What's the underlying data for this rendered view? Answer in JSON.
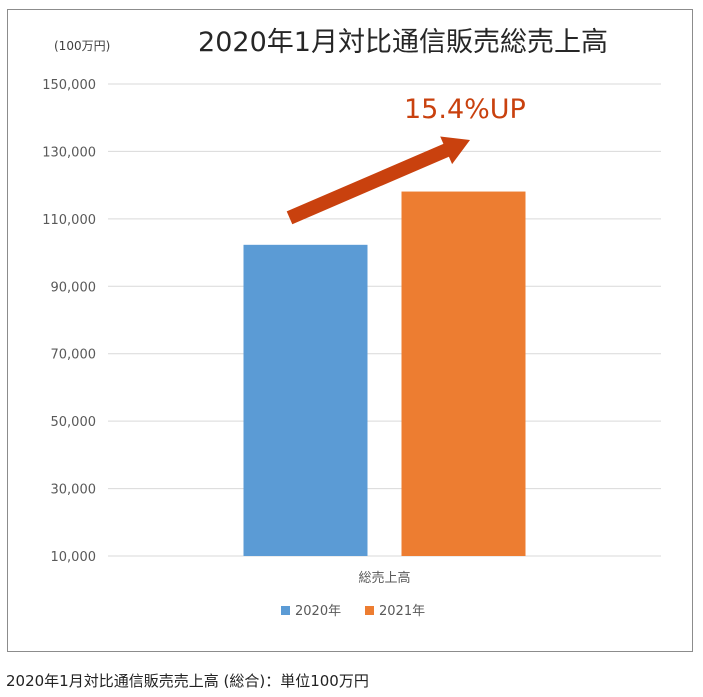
{
  "caption": "2020年1月対比通信販売売上高 (総合)：単位100万円",
  "chart_data": {
    "type": "bar",
    "title": "2020年1月対比通信販売総売上高",
    "unit_label": "(100万円)",
    "categories": [
      "総売上高"
    ],
    "series": [
      {
        "name": "2020年",
        "values": [
          102300
        ],
        "color": "#5b9bd5"
      },
      {
        "name": "2021年",
        "values": [
          118100
        ],
        "color": "#ed7d31"
      }
    ],
    "ylim": [
      10000,
      150000
    ],
    "yticks": [
      10000,
      30000,
      50000,
      70000,
      90000,
      110000,
      130000,
      150000
    ],
    "ytick_labels": [
      "10,000",
      "30,000",
      "50,000",
      "70,000",
      "90,000",
      "110,000",
      "130,000",
      "150,000"
    ],
    "grid": true,
    "legend": "bottom",
    "annotation": {
      "text": "15.4%UP",
      "color": "#c9410e"
    }
  }
}
